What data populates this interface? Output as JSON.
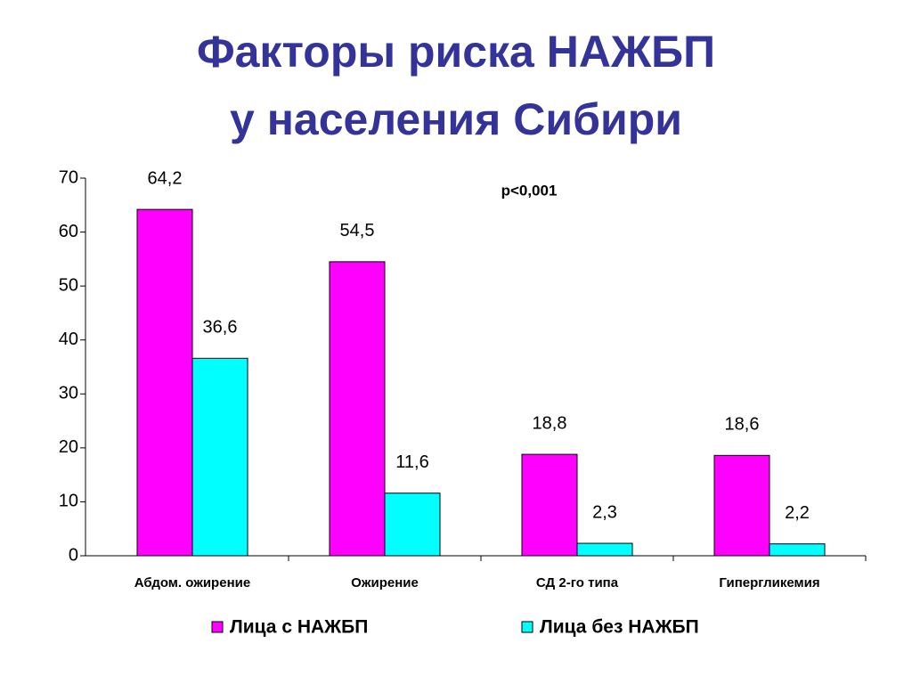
{
  "chart_data": {
    "type": "bar",
    "title": [
      "Факторы риска НАЖБП",
      "у населения Сибири"
    ],
    "annotation": "p<0,001",
    "categories": [
      "Абдом. ожирение",
      "Ожирение",
      "СД 2-го типа",
      "Гипергликемия"
    ],
    "series": [
      {
        "name": "Лица с НАЖБП",
        "color": "#ff00ff",
        "values": [
          64.2,
          54.5,
          18.8,
          18.6
        ],
        "value_labels": [
          "64,2",
          "54,5",
          "18,8",
          "18,6"
        ]
      },
      {
        "name": "Лица без НАЖБП",
        "color": "#00ffff",
        "values": [
          36.6,
          11.6,
          2.3,
          2.2
        ],
        "value_labels": [
          "36,6",
          "11,6",
          "2,3",
          "2,2"
        ]
      }
    ],
    "ylim": [
      0,
      70
    ],
    "yticks": [
      0,
      10,
      20,
      30,
      40,
      50,
      60,
      70
    ],
    "grid": false,
    "legend": "bottom"
  }
}
